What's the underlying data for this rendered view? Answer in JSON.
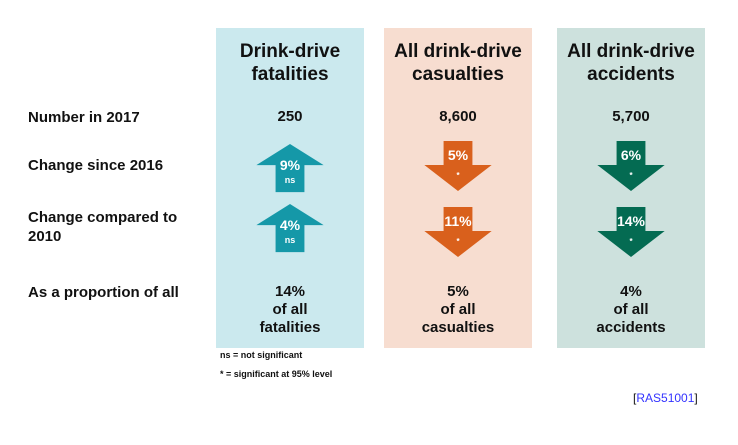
{
  "colors": {
    "col1_bg": "#cbe9ee",
    "col2_bg": "#f7ddd0",
    "col3_bg": "#cde1dd",
    "col1_arrow": "#1598a8",
    "col2_arrow": "#d9601c",
    "col3_arrow": "#046b52",
    "link": "#3333ff"
  },
  "row_labels": {
    "number": "Number in 2017",
    "change2016": "Change since 2016",
    "change2010": "Change compared to 2010",
    "proportion": "As a proportion of all"
  },
  "columns": [
    {
      "title": "Drink-drive fatalities",
      "number": "250",
      "change2016": {
        "value": "9%",
        "sig": "ns",
        "direction": "up"
      },
      "change2010": {
        "value": "4%",
        "sig": "ns",
        "direction": "up"
      },
      "proportion": "14%",
      "proportion_of": "of all",
      "proportion_noun": "fatalities"
    },
    {
      "title": "All drink-drive casualties",
      "number": "8,600",
      "change2016": {
        "value": "5%",
        "sig": "*",
        "direction": "down"
      },
      "change2010": {
        "value": "11%",
        "sig": "*",
        "direction": "down"
      },
      "proportion": "5%",
      "proportion_of": "of all",
      "proportion_noun": "casualties"
    },
    {
      "title": "All drink-drive accidents",
      "number": "5,700",
      "change2016": {
        "value": "6%",
        "sig": "*",
        "direction": "down"
      },
      "change2010": {
        "value": "14%",
        "sig": "*",
        "direction": "down"
      },
      "proportion": "4%",
      "proportion_of": "of all",
      "proportion_noun": "accidents"
    }
  ],
  "notes": {
    "ns": "ns = not significant",
    "star": "* = significant at 95% level"
  },
  "reference": {
    "open": "[",
    "code": "RAS51001",
    "close": "]"
  }
}
